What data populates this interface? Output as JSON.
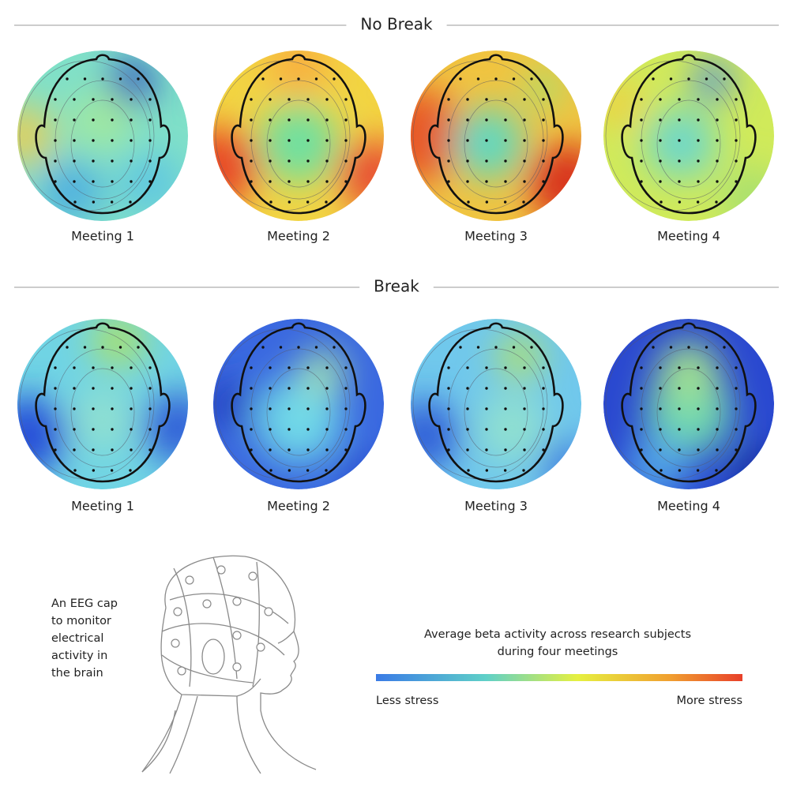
{
  "sections": [
    {
      "title": "No Break",
      "panels": [
        "Meeting 1",
        "Meeting 2",
        "Meeting 3",
        "Meeting 4"
      ]
    },
    {
      "title": "Break",
      "panels": [
        "Meeting 1",
        "Meeting 2",
        "Meeting 3",
        "Meeting 4"
      ]
    }
  ],
  "cap_caption": [
    "An EEG cap",
    "to monitor",
    "electrical",
    "activity in",
    "the brain"
  ],
  "legend": {
    "title": [
      "Average beta activity across research subjects",
      "during four meetings"
    ],
    "low": "Less stress",
    "high": "More stress"
  }
}
